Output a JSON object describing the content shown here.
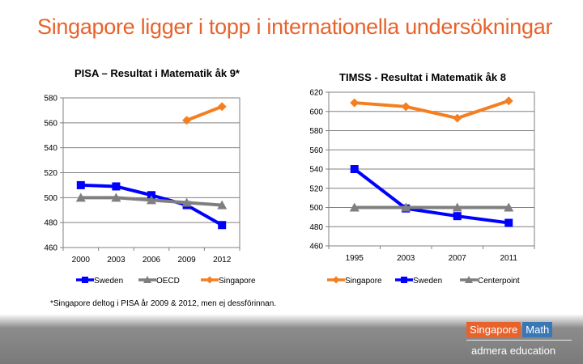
{
  "slide": {
    "title": "Singapore ligger i topp i internationella undersökningar",
    "footnote": "*Singapore deltog i PISA år 2009 & 2012, men ej dessförinnan.",
    "brand": {
      "name_a": "Singapore",
      "name_b": "Math",
      "tagline": "admera education",
      "color_a": "#e8632b",
      "color_b": "#3a78b5"
    }
  },
  "chart_data": [
    {
      "type": "line",
      "title": "PISA – Resultat i Matematik åk 9*",
      "x": [
        "2000",
        "2003",
        "2006",
        "2009",
        "2012"
      ],
      "ylim": [
        460,
        580
      ],
      "yticks": [
        460,
        480,
        500,
        520,
        540,
        560,
        580
      ],
      "grid": true,
      "legend_position": "bottom",
      "series": [
        {
          "name": "Sweden",
          "color": "#0000ff",
          "marker": "square",
          "values": [
            510,
            509,
            502,
            494,
            478
          ]
        },
        {
          "name": "OECD",
          "color": "#7f7f7f",
          "marker": "triangle",
          "values": [
            500,
            500,
            498,
            496,
            494
          ]
        },
        {
          "name": "Singapore",
          "color": "#f47f20",
          "marker": "diamond",
          "values": [
            null,
            null,
            null,
            562,
            573
          ]
        }
      ]
    },
    {
      "type": "line",
      "title": "TIMSS - Resultat i Matematik åk 8",
      "x": [
        "1995",
        "2003",
        "2007",
        "2011"
      ],
      "ylim": [
        460,
        620
      ],
      "yticks": [
        460,
        480,
        500,
        520,
        540,
        560,
        580,
        600,
        620
      ],
      "grid": true,
      "legend_position": "bottom",
      "series": [
        {
          "name": "Singapore",
          "color": "#f47f20",
          "marker": "diamond",
          "values": [
            609,
            605,
            593,
            611
          ]
        },
        {
          "name": "Sweden",
          "color": "#0000ff",
          "marker": "square",
          "values": [
            540,
            499,
            491,
            484
          ]
        },
        {
          "name": "Centerpoint",
          "color": "#7f7f7f",
          "marker": "triangle",
          "values": [
            500,
            500,
            500,
            500
          ]
        }
      ]
    }
  ]
}
